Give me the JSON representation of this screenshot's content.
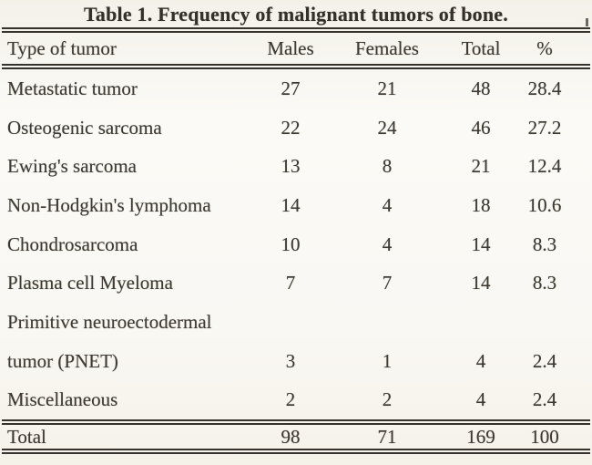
{
  "page": {
    "background": "#f8f5ef",
    "text_color": "#3e3a33",
    "rule_color": "#36322c"
  },
  "title": "Table 1. Frequency of malignant tumors of bone.",
  "table": {
    "columns": [
      "Type of tumor",
      "Males",
      "Females",
      "Total",
      "%"
    ],
    "rows": [
      {
        "label": "Metastatic tumor",
        "males": "27",
        "females": "21",
        "total": "48",
        "percent": "28.4"
      },
      {
        "label": "Osteogenic sarcoma",
        "males": "22",
        "females": "24",
        "total": "46",
        "percent": "27.2"
      },
      {
        "label": "Ewing's sarcoma",
        "males": "13",
        "females": "8",
        "total": "21",
        "percent": "12.4"
      },
      {
        "label": "Non-Hodgkin's lymphoma",
        "males": "14",
        "females": "4",
        "total": "18",
        "percent": "10.6"
      },
      {
        "label": "Chondrosarcoma",
        "males": "10",
        "females": "4",
        "total": "14",
        "percent": "8.3"
      },
      {
        "label": "Plasma cell Myeloma",
        "males": "7",
        "females": "7",
        "total": "14",
        "percent": "8.3"
      },
      {
        "label": "Primitive neuroectodermal tumor (PNET)",
        "label_lines": [
          "Primitive neuroectodermal",
          "tumor (PNET)"
        ],
        "males": "3",
        "females": "1",
        "total": "4",
        "percent": "2.4"
      },
      {
        "label": "Miscellaneous",
        "males": "2",
        "females": "2",
        "total": "4",
        "percent": "2.4"
      }
    ],
    "total_row": {
      "label": "Total",
      "males": "98",
      "females": "71",
      "total": "169",
      "percent": "100"
    }
  }
}
